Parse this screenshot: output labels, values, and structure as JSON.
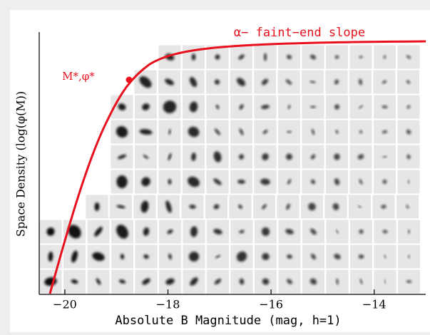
{
  "figure": {
    "annotations": [
      "α− faint−end slope",
      "M*,φ*"
    ],
    "x_axis": {
      "label": "Absolute B Magnitude (mag, h=1)",
      "lim": [
        -20.4,
        -13.0
      ],
      "ticks": [
        {
          "value": -20,
          "label": "−20"
        },
        {
          "value": -18,
          "label": "−18"
        },
        {
          "value": -16,
          "label": "−16"
        },
        {
          "value": -14,
          "label": "−14"
        }
      ]
    },
    "y_axis": {
      "label": "Space Density (log(φ(M))"
    }
  }
}
